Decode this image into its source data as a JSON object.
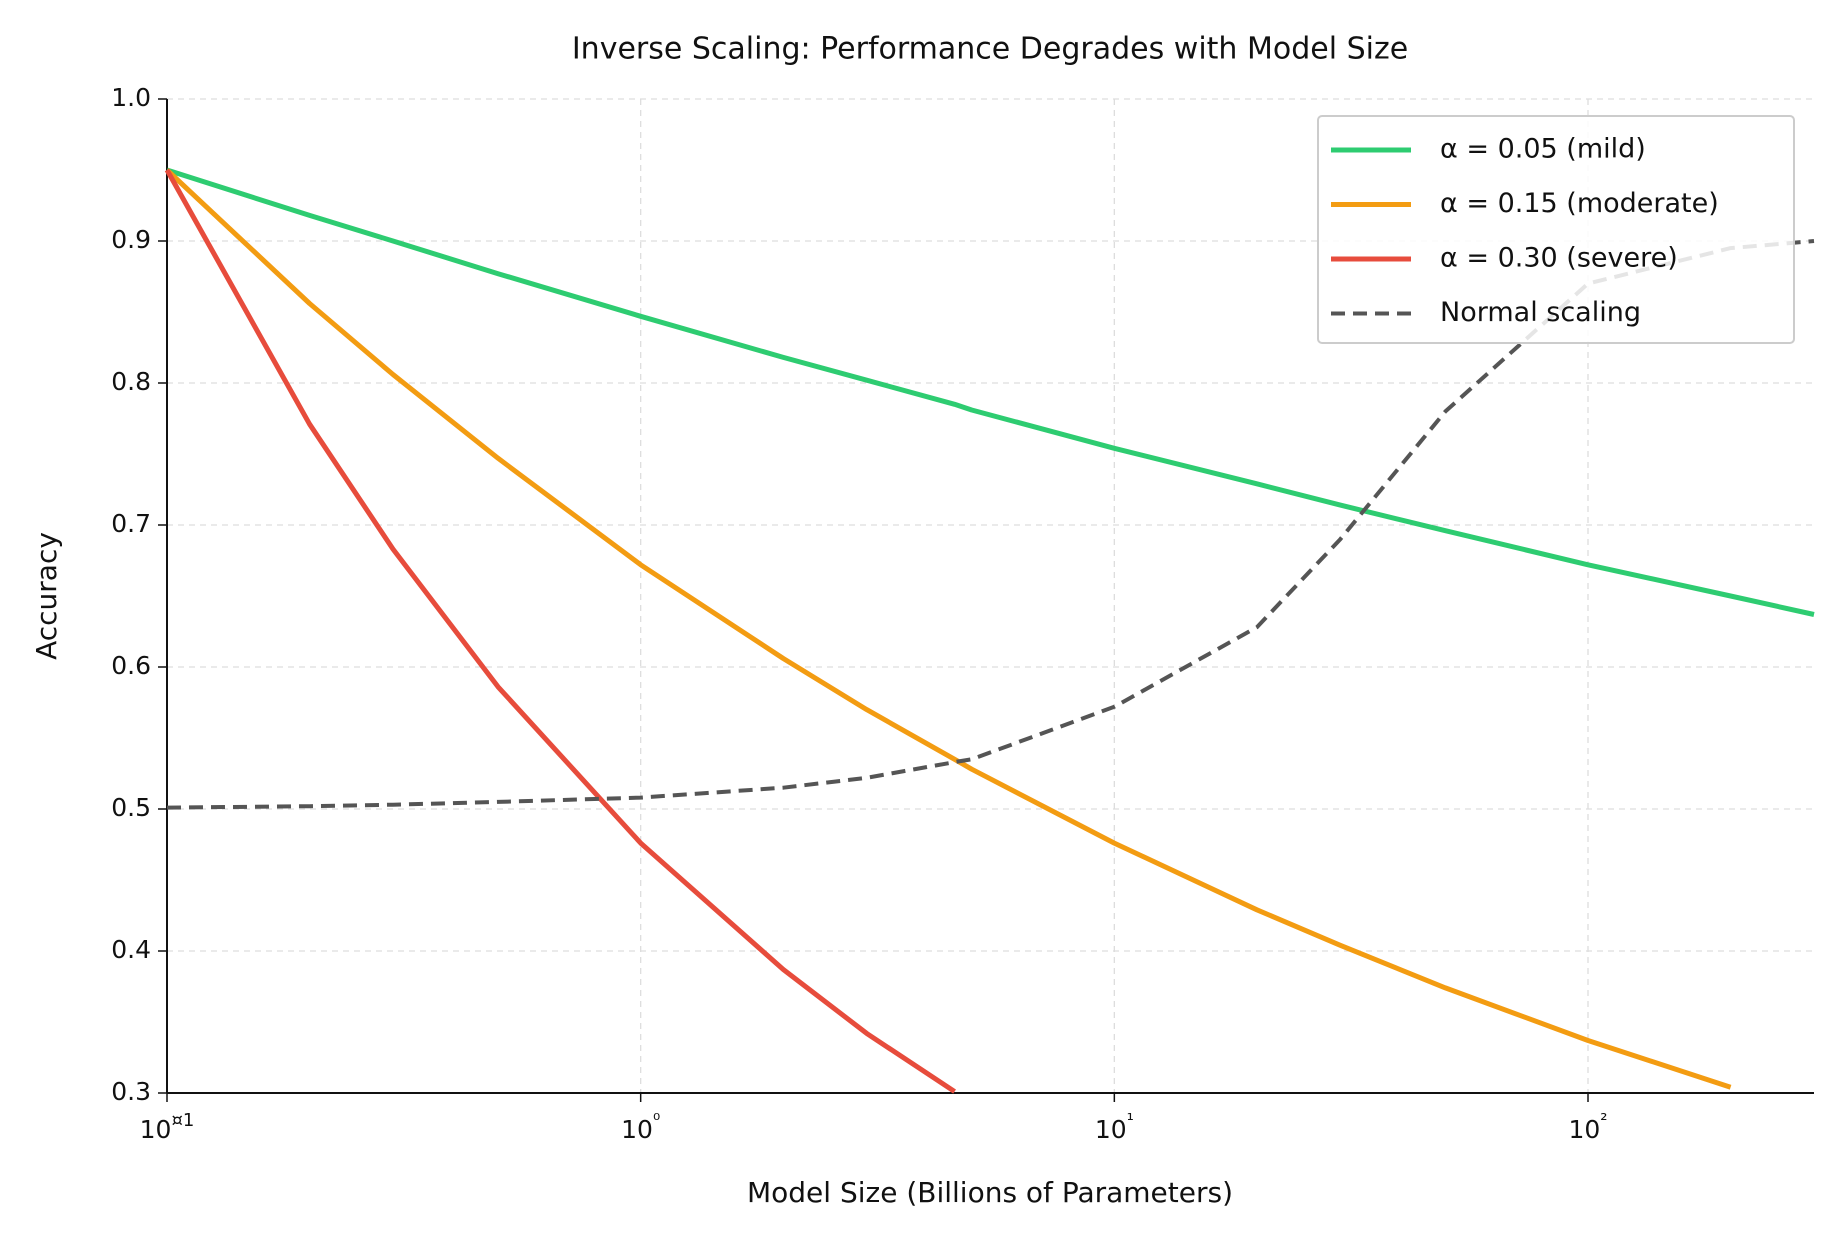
{
  "chart_data": {
    "type": "line",
    "title": "Inverse Scaling: Performance Degrades with Model Size",
    "x_label": "Model Size (Billions of Parameters)",
    "y_label": "Accuracy",
    "x": [
      0.1,
      0.2,
      0.3,
      0.5,
      1,
      2,
      3,
      4.6,
      5,
      10,
      20,
      30,
      50,
      100,
      200,
      300
    ],
    "series": [
      {
        "name": "α = 0.05 (mild)",
        "color": "#2ecc71",
        "dash": false,
        "values": [
          0.95,
          0.918,
          0.9,
          0.877,
          0.847,
          0.818,
          0.802,
          0.785,
          0.781,
          0.754,
          0.729,
          0.714,
          0.696,
          0.672,
          0.65,
          0.637
        ]
      },
      {
        "name": "α = 0.15 (moderate)",
        "color": "#f39c12",
        "dash": false,
        "values": [
          0.95,
          0.856,
          0.806,
          0.747,
          0.672,
          0.606,
          0.57,
          0.535,
          0.528,
          0.476,
          0.429,
          0.404,
          0.374,
          0.337,
          0.304,
          null
        ]
      },
      {
        "name": "α = 0.30 (severe)",
        "color": "#e74c3c",
        "dash": false,
        "values": [
          0.95,
          0.771,
          0.683,
          0.586,
          0.476,
          0.387,
          0.342,
          0.301,
          null,
          null,
          null,
          null,
          null,
          null,
          null,
          null
        ]
      },
      {
        "name": "Normal scaling",
        "color": "#555555",
        "dash": true,
        "values": [
          0.501,
          0.502,
          0.503,
          0.505,
          0.508,
          0.515,
          0.522,
          0.533,
          0.535,
          0.572,
          0.628,
          0.69,
          0.78,
          0.87,
          0.895,
          0.9
        ]
      }
    ],
    "xscale": "log",
    "xlim": [
      0.1,
      300
    ],
    "xticks": [
      {
        "value": 0.1,
        "label": "10¤1"
      },
      {
        "value": 1,
        "label": "10⁰"
      },
      {
        "value": 10,
        "label": "10¹"
      },
      {
        "value": 100,
        "label": "10²"
      }
    ],
    "ylim": [
      0.3,
      1.0
    ],
    "yticks": [
      {
        "value": 0.3,
        "label": "0.3"
      },
      {
        "value": 0.4,
        "label": "0.4"
      },
      {
        "value": 0.5,
        "label": "0.5"
      },
      {
        "value": 0.6,
        "label": "0.6"
      },
      {
        "value": 0.7,
        "label": "0.7"
      },
      {
        "value": 0.8,
        "label": "0.8"
      },
      {
        "value": 0.9,
        "label": "0.9"
      },
      {
        "value": 1.0,
        "label": "1.0"
      }
    ],
    "grid": true,
    "legend": "upper right"
  }
}
